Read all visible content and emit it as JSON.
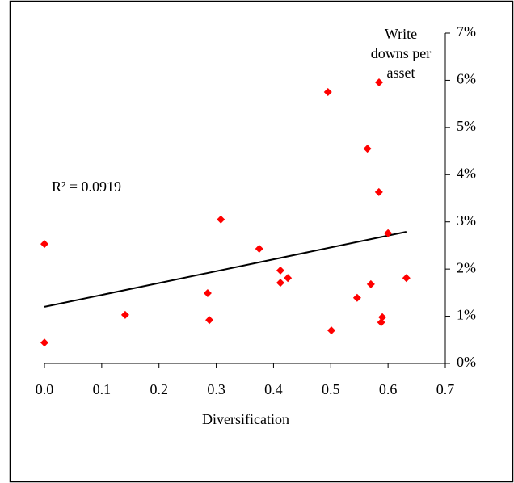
{
  "chart_data": {
    "type": "scatter",
    "xlabel": "Diversification",
    "annotation": "R² = 0.0919",
    "xlim": [
      0,
      0.7
    ],
    "xticks": [
      {
        "value": 0,
        "label": "0.0"
      },
      0.1,
      0.2,
      0.3,
      0.4,
      0.5,
      0.6,
      0.7
    ],
    "ylim": [
      0,
      7
    ],
    "yticks": [
      {
        "value": 0,
        "label": "0%"
      },
      {
        "value": 1,
        "label": "1%"
      },
      {
        "value": 2,
        "label": "2%"
      },
      {
        "value": 3,
        "label": "3%"
      },
      {
        "value": 4,
        "label": "4%"
      },
      {
        "value": 5,
        "label": "5%"
      },
      {
        "value": 6,
        "label": "6%"
      },
      {
        "value": 7,
        "label": "7%"
      }
    ],
    "y_axis_side": "right",
    "grid": false,
    "series": [
      {
        "name": "Write downs per asset",
        "color": "#ff0000",
        "x": [
          0,
          0,
          0.141,
          0.285,
          0.288,
          0.308,
          0.375,
          0.412,
          0.412,
          0.425,
          0.495,
          0.501,
          0.546,
          0.564,
          0.57,
          0.584,
          0.588,
          0.59,
          0.6,
          0.632
        ],
        "values": [
          2.53,
          0.44,
          1.03,
          1.49,
          0.92,
          3.05,
          2.43,
          1.97,
          1.71,
          1.81,
          5.75,
          0.7,
          1.39,
          4.55,
          1.68,
          3.63,
          0.87,
          0.98,
          2.76,
          1.81
        ]
      }
    ],
    "trendline": {
      "color": "#000000",
      "x": [
        0,
        0.632
      ],
      "values": [
        1.2,
        2.79
      ]
    }
  }
}
